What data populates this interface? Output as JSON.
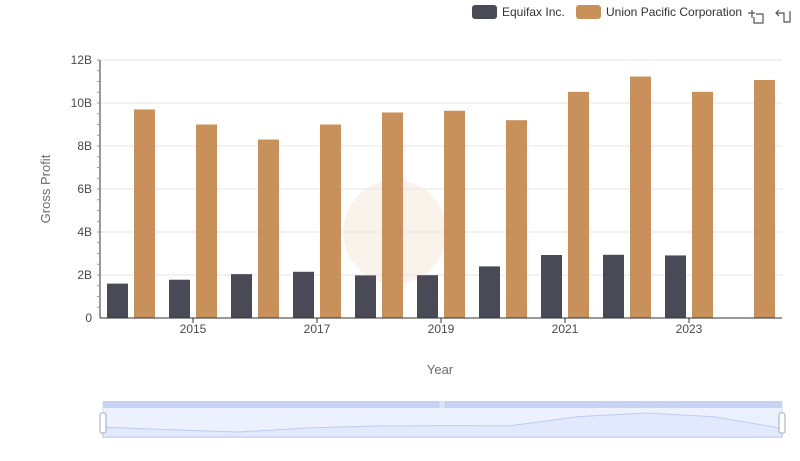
{
  "colors": {
    "series": [
      "#4a4a56",
      "#c8905a"
    ],
    "grid": "#e6e6e6",
    "axis": "#333333",
    "zoom_fill": "#dbe4fb",
    "zoom_line": "#9fb4ea",
    "zoom_border": "#c7d3f3",
    "watermark": "#f3e4d2"
  },
  "toolbar": {
    "icons": [
      "zoom-icon",
      "restore-icon"
    ]
  },
  "chart_data": {
    "type": "bar",
    "xlabel": "Year",
    "ylabel": "Gross Profit",
    "ylim": [
      0,
      12000000000
    ],
    "y_ticks": [
      "0",
      "2B",
      "4B",
      "6B",
      "8B",
      "10B",
      "12B"
    ],
    "categories": [
      "2014",
      "2015",
      "2016",
      "2017",
      "2018",
      "2019",
      "2020",
      "2021",
      "2022",
      "2023",
      "2024"
    ],
    "x_tick_labels": [
      "2015",
      "2017",
      "2019",
      "2021",
      "2023"
    ],
    "legend_position": "top-right",
    "grid": true,
    "series": [
      {
        "name": "Equifax Inc.",
        "values": [
          1600000000,
          1780000000,
          2040000000,
          2150000000,
          1980000000,
          1990000000,
          2400000000,
          2930000000,
          2940000000,
          2910000000,
          null
        ]
      },
      {
        "name": "Union Pacific Corporation",
        "values": [
          9700000000,
          9000000000,
          8300000000,
          9000000000,
          9560000000,
          9640000000,
          9200000000,
          10520000000,
          11230000000,
          10520000000,
          11070000000
        ]
      }
    ]
  }
}
